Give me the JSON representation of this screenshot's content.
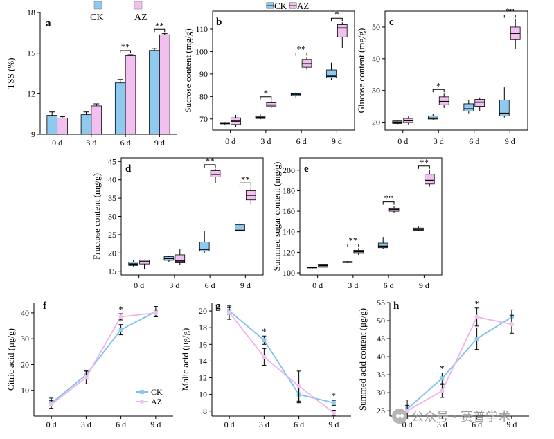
{
  "colors": {
    "ck": "#8ec9ef",
    "az": "#f2c0ef",
    "ck_line": "#7fbff0",
    "az_line": "#ecb4ec"
  },
  "watermark": {
    "text": "公众号 · 赛普学术",
    "icon": "wechat-icon"
  },
  "chart_data": [
    {
      "id": "a",
      "type": "bar",
      "panel_label": "a",
      "xlabel": "",
      "ylabel": "TSS (%)",
      "ylim": [
        9,
        18
      ],
      "yticks": [
        "9",
        "12",
        "15",
        "18"
      ],
      "categories": [
        "0 d",
        "3 d",
        "6 d",
        "9 d"
      ],
      "legend": {
        "items": [
          "CK",
          "AZ"
        ],
        "placement": "top"
      },
      "series": [
        {
          "name": "CK",
          "values": [
            10.4,
            10.45,
            12.8,
            15.2
          ],
          "errors": [
            0.25,
            0.2,
            0.25,
            0.15
          ]
        },
        {
          "name": "AZ",
          "values": [
            10.2,
            11.1,
            14.8,
            16.35
          ],
          "errors": [
            0.1,
            0.15,
            0.08,
            0.1
          ]
        }
      ],
      "significance": [
        {
          "index": 2,
          "label": "**"
        },
        {
          "index": 3,
          "label": "**"
        }
      ]
    },
    {
      "id": "b",
      "type": "box",
      "panel_label": "b",
      "xlabel": "",
      "ylabel": "Sucrose content (mg/g)",
      "ylim": [
        65,
        118
      ],
      "yticks": [
        "70",
        "80",
        "90",
        "100",
        "110"
      ],
      "categories": [
        "0 d",
        "3 d",
        "6 d",
        "9 d"
      ],
      "legend": {
        "items": [
          "CK",
          "AZ"
        ],
        "placement": "top"
      },
      "series": [
        {
          "name": "CK",
          "boxes": [
            [
              67.5,
              67.8,
              68.1,
              68.4,
              68.6
            ],
            [
              69.8,
              70.2,
              70.8,
              71.3,
              72.0
            ],
            [
              79.5,
              80.4,
              81.0,
              81.4,
              81.8
            ],
            [
              87.5,
              88.3,
              89.0,
              91.8,
              95.0
            ]
          ]
        },
        {
          "name": "AZ",
          "boxes": [
            [
              66.2,
              67.5,
              69.0,
              70.5,
              71.8
            ],
            [
              74.9,
              75.5,
              76.2,
              77.2,
              78.0
            ],
            [
              92.0,
              93.0,
              94.5,
              96.5,
              97.5
            ],
            [
              101.5,
              106.5,
              110.5,
              112.0,
              113.0
            ]
          ]
        }
      ],
      "significance": [
        {
          "index": 1,
          "label": "*"
        },
        {
          "index": 2,
          "label": "**"
        },
        {
          "index": 3,
          "label": "*"
        }
      ]
    },
    {
      "id": "c",
      "type": "box",
      "panel_label": "c",
      "xlabel": "",
      "ylabel": "Glucose content (mg/g)",
      "ylim": [
        17.5,
        55
      ],
      "yticks": [
        "20",
        "30",
        "40",
        "50"
      ],
      "categories": [
        "0 d",
        "3 d",
        "6 d",
        "9 d"
      ],
      "series": [
        {
          "name": "CK",
          "boxes": [
            [
              19.2,
              19.6,
              20.0,
              20.4,
              20.8
            ],
            [
              20.8,
              21.0,
              21.3,
              22.0,
              22.6
            ],
            [
              22.8,
              23.5,
              24.2,
              25.8,
              27.0
            ],
            [
              21.5,
              22.0,
              22.8,
              27.0,
              31.0
            ]
          ]
        },
        {
          "name": "AZ",
          "boxes": [
            [
              19.3,
              19.9,
              20.5,
              21.2,
              21.8
            ],
            [
              24.5,
              25.5,
              26.5,
              28.0,
              29.0
            ],
            [
              23.5,
              25.0,
              26.3,
              27.2,
              27.8
            ],
            [
              43.0,
              46.0,
              48.0,
              50.0,
              52.5
            ]
          ]
        }
      ],
      "significance": [
        {
          "index": 1,
          "label": "*"
        },
        {
          "index": 3,
          "label": "**"
        }
      ]
    },
    {
      "id": "d",
      "type": "box",
      "panel_label": "d",
      "xlabel": "",
      "ylabel": "Fructose content (mg/g)",
      "ylim": [
        14,
        46
      ],
      "yticks": [
        "15",
        "20",
        "25",
        "30",
        "35",
        "40",
        "45"
      ],
      "categories": [
        "0 d",
        "3 d",
        "6 d",
        "9 d"
      ],
      "series": [
        {
          "name": "CK",
          "boxes": [
            [
              16.3,
              16.6,
              17.0,
              17.5,
              18.0
            ],
            [
              17.5,
              18.0,
              18.5,
              19.0,
              19.3
            ],
            [
              20.0,
              20.5,
              21.0,
              23.0,
              26.0
            ],
            [
              25.8,
              26.0,
              26.2,
              27.7,
              28.8
            ]
          ]
        },
        {
          "name": "AZ",
          "boxes": [
            [
              15.5,
              17.0,
              17.6,
              18.0,
              18.2
            ],
            [
              16.8,
              17.3,
              17.8,
              19.5,
              21.0
            ],
            [
              39.0,
              40.8,
              41.5,
              42.5,
              43.0
            ],
            [
              33.2,
              34.5,
              35.8,
              37.0,
              38.0
            ]
          ]
        }
      ],
      "significance": [
        {
          "index": 2,
          "label": "**"
        },
        {
          "index": 3,
          "label": "**"
        }
      ]
    },
    {
      "id": "e",
      "type": "box",
      "panel_label": "e",
      "xlabel": "",
      "ylabel": "Summed sugar content (mg/g)",
      "ylim": [
        98,
        212
      ],
      "yticks": [
        "100",
        "120",
        "140",
        "160",
        "180",
        "200"
      ],
      "categories": [
        "0 d",
        "3 d",
        "6 d",
        "9 d"
      ],
      "series": [
        {
          "name": "CK",
          "boxes": [
            [
              104.0,
              104.8,
              105.3,
              105.8,
              106.2
            ],
            [
              109.5,
              110.0,
              110.5,
              111.0,
              111.5
            ],
            [
              123.0,
              124.5,
              126.0,
              129.0,
              135.0
            ],
            [
              140.5,
              141.5,
              142.5,
              143.7,
              145.0
            ]
          ]
        },
        {
          "name": "AZ",
          "boxes": [
            [
              103.5,
              105.5,
              107.0,
              108.5,
              109.5
            ],
            [
              117.5,
              119.0,
              120.5,
              122.0,
              124.0
            ],
            [
              158.5,
              160.0,
              162.0,
              163.2,
              165.0
            ],
            [
              184.0,
              186.5,
              190.0,
              196.0,
              200.0
            ]
          ]
        }
      ],
      "significance": [
        {
          "index": 1,
          "label": "**"
        },
        {
          "index": 2,
          "label": "**"
        },
        {
          "index": 3,
          "label": "**"
        }
      ]
    },
    {
      "id": "f",
      "type": "line",
      "panel_label": "f",
      "xlabel": "",
      "ylabel": "Citric acid (μg/g)",
      "ylim": [
        0,
        44
      ],
      "yticks": [
        "10",
        "20",
        "30",
        "40"
      ],
      "categories": [
        "0 d",
        "3 d",
        "6 d",
        "9 d"
      ],
      "legend": {
        "items": [
          "CK",
          "AZ"
        ],
        "placement": "bottom-right"
      },
      "series": [
        {
          "name": "CK",
          "values": [
            5.0,
            16.0,
            33.5,
            40.5
          ],
          "errors": [
            2.0,
            1.5,
            2.0,
            2.0
          ]
        },
        {
          "name": "AZ",
          "values": [
            4.5,
            15.0,
            38.5,
            40.0
          ],
          "errors": [
            1.5,
            2.5,
            1.2,
            1.2
          ]
        }
      ],
      "significance": [
        {
          "index": 2,
          "label": "*"
        }
      ]
    },
    {
      "id": "g",
      "type": "line",
      "panel_label": "g",
      "xlabel": "",
      "ylabel": "Malic acid (μg/g)",
      "ylim": [
        7.4,
        21
      ],
      "yticks": [
        "8",
        "10",
        "12",
        "14",
        "16",
        "18",
        "20"
      ],
      "categories": [
        "0 d",
        "3 d",
        "6 d",
        "9 d"
      ],
      "series": [
        {
          "name": "CK",
          "values": [
            20.0,
            16.5,
            10.0,
            9.0
          ],
          "errors": [
            0.4,
            0.5,
            1.0,
            0.3
          ]
        },
        {
          "name": "AZ",
          "values": [
            19.8,
            14.5,
            11.0,
            7.8
          ],
          "errors": [
            0.8,
            1.0,
            1.8,
            0.3
          ]
        }
      ],
      "significance": [
        {
          "index": 1,
          "label": "*"
        },
        {
          "index": 3,
          "label": "*"
        }
      ]
    },
    {
      "id": "h",
      "type": "line",
      "panel_label": "h",
      "xlabel": "",
      "ylabel": "Summed acid content (μg/g)",
      "ylim": [
        23.5,
        55
      ],
      "yticks": [
        "25",
        "30",
        "35",
        "40",
        "45",
        "50",
        "55"
      ],
      "categories": [
        "0 d",
        "3 d",
        "6 d",
        "9 d"
      ],
      "series": [
        {
          "name": "CK",
          "values": [
            25.5,
            34.0,
            45.0,
            51.0
          ],
          "errors": [
            2.5,
            1.5,
            3.0,
            2.0
          ]
        },
        {
          "name": "AZ",
          "values": [
            25.0,
            30.5,
            51.0,
            49.0
          ],
          "errors": [
            1.5,
            1.8,
            2.5,
            2.5
          ]
        }
      ],
      "significance": [
        {
          "index": 1,
          "label": "*"
        },
        {
          "index": 2,
          "label": "*"
        }
      ]
    }
  ]
}
